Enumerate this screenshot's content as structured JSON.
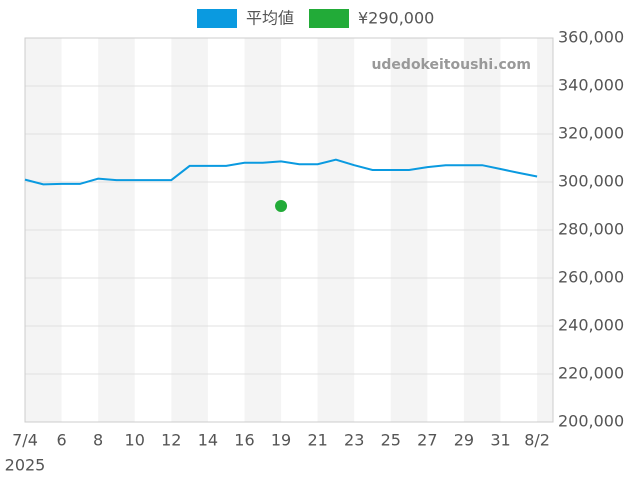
{
  "chart_data": {
    "type": "line",
    "watermark": "udedokeitoushi.com",
    "year_label": "2025",
    "xlim": [
      0,
      28.87
    ],
    "xticks": [
      {
        "value": 0,
        "label": "7/4"
      },
      {
        "value": 2,
        "label": "6"
      },
      {
        "value": 4,
        "label": "8"
      },
      {
        "value": 6,
        "label": "10"
      },
      {
        "value": 8,
        "label": "12"
      },
      {
        "value": 10,
        "label": "14"
      },
      {
        "value": 12,
        "label": "16"
      },
      {
        "value": 14,
        "label": "19"
      },
      {
        "value": 16,
        "label": "21"
      },
      {
        "value": 18,
        "label": "23"
      },
      {
        "value": 20,
        "label": "25"
      },
      {
        "value": 22,
        "label": "27"
      },
      {
        "value": 24,
        "label": "29"
      },
      {
        "value": 26,
        "label": "31"
      },
      {
        "value": 28,
        "label": "8/2"
      }
    ],
    "ylim": [
      200000,
      360000
    ],
    "yticks": [
      {
        "value": 200000,
        "label": "200,000"
      },
      {
        "value": 220000,
        "label": "220,000"
      },
      {
        "value": 240000,
        "label": "240,000"
      },
      {
        "value": 260000,
        "label": "260,000"
      },
      {
        "value": 280000,
        "label": "280,000"
      },
      {
        "value": 300000,
        "label": "300,000"
      },
      {
        "value": 320000,
        "label": "320,000"
      },
      {
        "value": 340000,
        "label": "340,000"
      },
      {
        "value": 360000,
        "label": "360,000"
      }
    ],
    "grid": true,
    "series": [
      {
        "name": "平均値",
        "color": "#0a9ae0",
        "type": "line",
        "x": [
          0,
          1,
          2,
          3,
          4,
          5,
          6,
          7,
          8,
          9,
          10,
          11,
          12,
          13,
          14,
          15,
          16,
          17,
          18,
          19,
          20,
          21,
          22,
          23,
          24,
          25,
          26,
          27,
          28
        ],
        "values": [
          301000,
          299000,
          299200,
          299200,
          301400,
          300800,
          300800,
          300800,
          300800,
          306700,
          306700,
          306700,
          308000,
          308000,
          308600,
          307400,
          307400,
          309300,
          307000,
          305000,
          305000,
          305000,
          306200,
          307000,
          307000,
          307000,
          305400,
          303800,
          302300
        ]
      },
      {
        "name": "¥290,000",
        "color": "#22ab38",
        "type": "scatter",
        "x": [
          14
        ],
        "values": [
          290000
        ]
      }
    ]
  }
}
